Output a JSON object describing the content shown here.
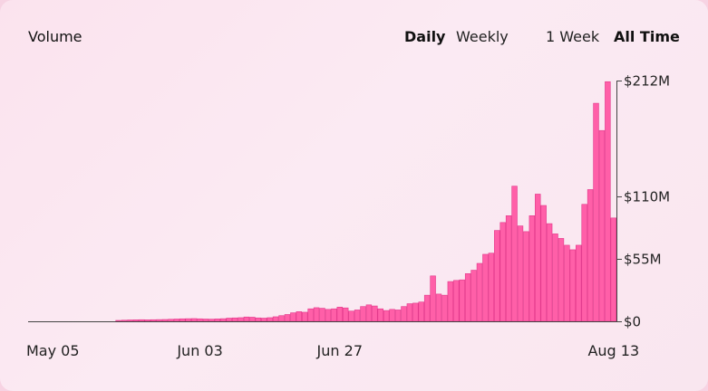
{
  "header": {
    "title": "Volume",
    "granularity": {
      "daily": "Daily",
      "weekly": "Weekly",
      "selected": "Daily"
    },
    "range": {
      "one_week": "1 Week",
      "all_time": "All Time",
      "selected": "All Time"
    }
  },
  "colors": {
    "bar": "#ff5fa8",
    "bar_stroke": "#e2378a",
    "axis": "#444444"
  },
  "chart_data": {
    "type": "bar",
    "xlabel": "",
    "ylabel": "",
    "ylim": [
      0,
      212
    ],
    "unit": "$M",
    "y_ticks": [
      {
        "value": 0,
        "label": "$0"
      },
      {
        "value": 55,
        "label": "$55M"
      },
      {
        "value": 110,
        "label": "$110M"
      },
      {
        "value": 212,
        "label": "$212M"
      }
    ],
    "x_tick_labels": [
      {
        "index": 0,
        "label": "May 05"
      },
      {
        "index": 29,
        "label": "Jun 03"
      },
      {
        "index": 53,
        "label": "Jun 27"
      },
      {
        "index": 100,
        "label": "Aug 13"
      }
    ],
    "start_date": "May 05",
    "values": [
      0,
      0,
      0,
      0,
      0,
      0,
      0,
      0,
      0,
      0,
      0,
      0,
      0,
      0,
      0,
      0.8,
      1.0,
      1.2,
      1.3,
      1.4,
      1.3,
      1.4,
      1.5,
      1.6,
      1.8,
      2.0,
      2.2,
      2.3,
      2.4,
      2.2,
      2.0,
      1.9,
      2.1,
      2.3,
      2.8,
      3.0,
      3.2,
      3.8,
      3.6,
      3.0,
      2.8,
      3.2,
      4.0,
      5.0,
      6.0,
      7.5,
      8.5,
      8.0,
      11.0,
      12.0,
      11.5,
      10.5,
      11.0,
      12.5,
      11.8,
      9.0,
      10.0,
      13.0,
      14.5,
      13.5,
      11.0,
      9.5,
      10.5,
      10.0,
      13.0,
      15.5,
      16.0,
      17.0,
      23.0,
      40.0,
      24.0,
      23.0,
      35.0,
      36.0,
      36.5,
      42.0,
      45.0,
      51.0,
      59.0,
      60.0,
      80.0,
      87.0,
      93.0,
      119.0,
      84.0,
      79.0,
      93.0,
      112.0,
      102.0,
      86.0,
      77.0,
      73.0,
      67.0,
      63.0,
      67.0,
      103.0,
      116.0,
      192.0,
      168.0,
      211.0,
      91.0
    ]
  }
}
